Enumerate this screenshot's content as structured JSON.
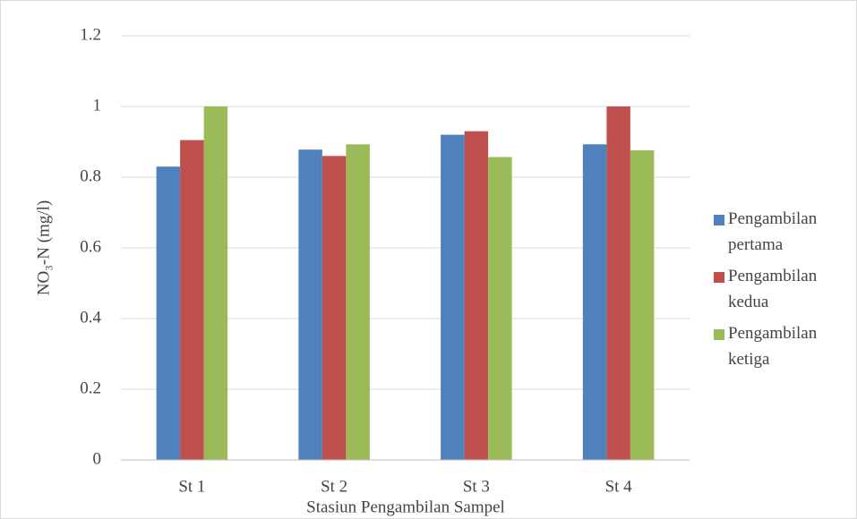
{
  "chart_data": {
    "type": "bar",
    "x_label": "Stasiun Pengambilan Sampel",
    "y_label": "NO₃-N (mg/l)",
    "categories": [
      "St 1",
      "St 2",
      "St 3",
      "St 4"
    ],
    "series": [
      {
        "name": "Pengambilan pertama",
        "color": "#4f81bd",
        "values": [
          0.83,
          0.878,
          0.92,
          0.893
        ]
      },
      {
        "name": "Pengambilan kedua",
        "color": "#c0504d",
        "values": [
          0.905,
          0.86,
          0.93,
          1.0
        ]
      },
      {
        "name": "Pengambilan ketiga",
        "color": "#9bbb59",
        "values": [
          1.0,
          0.893,
          0.857,
          0.876
        ]
      }
    ],
    "ylim": [
      0,
      1.2
    ],
    "yticks": [
      0,
      0.2,
      0.4,
      0.6,
      0.8,
      1,
      1.2
    ],
    "grid": true,
    "legend": "right"
  }
}
